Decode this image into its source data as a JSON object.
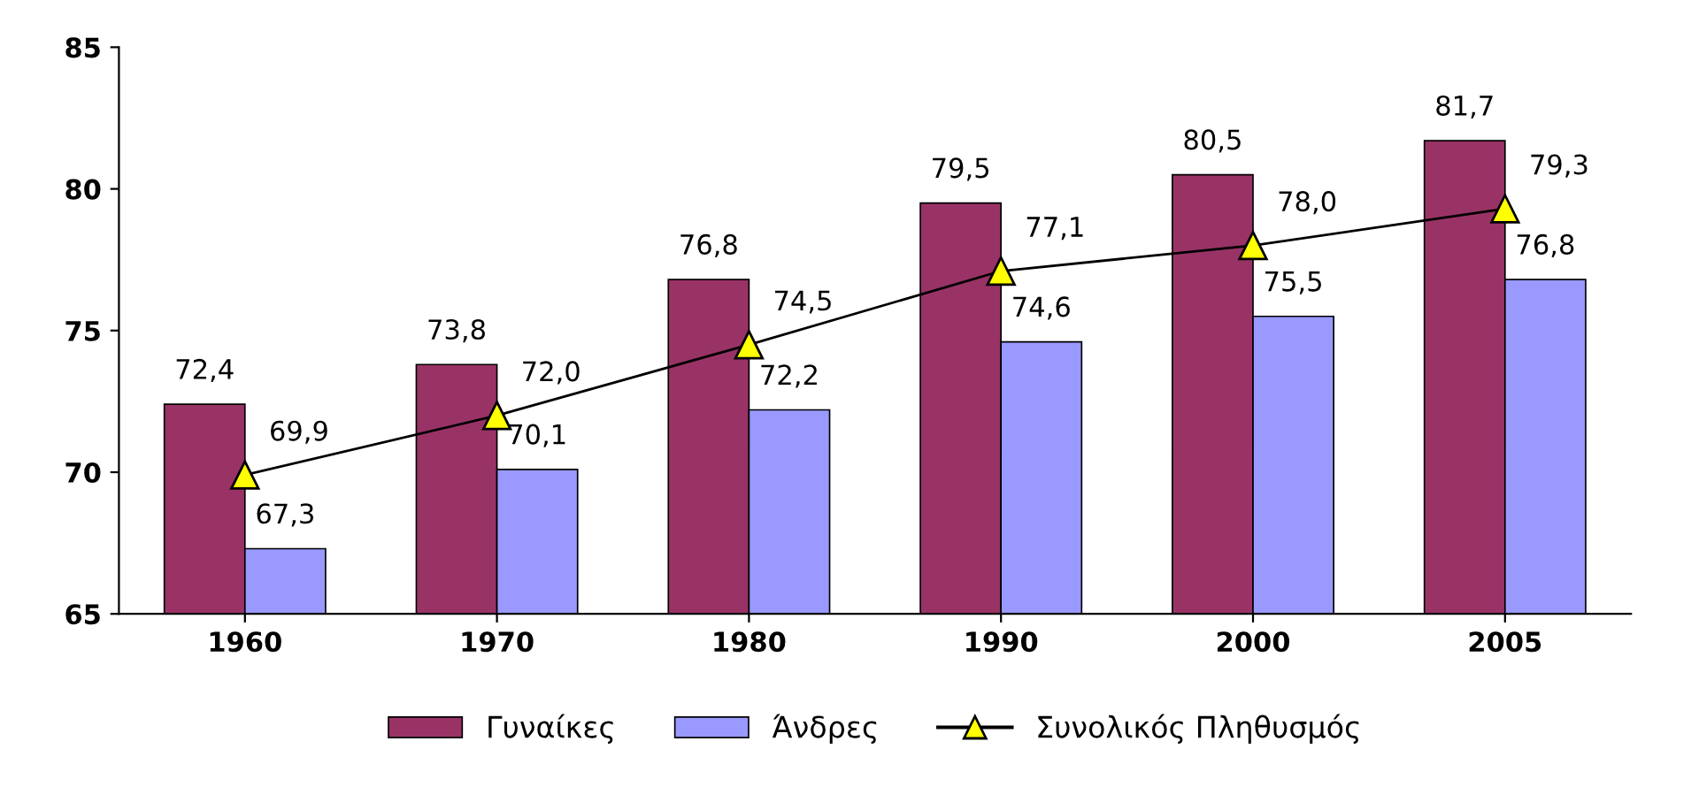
{
  "chart_data": {
    "type": "bar",
    "categories": [
      "1960",
      "1970",
      "1980",
      "1990",
      "2000",
      "2005"
    ],
    "series": [
      {
        "name": "Γυναίκες",
        "color": "#993366",
        "values": [
          72.4,
          73.8,
          76.8,
          79.5,
          80.5,
          81.7
        ],
        "value_labels": [
          "72,4",
          "73,8",
          "76,8",
          "79,5",
          "80,5",
          "81,7"
        ]
      },
      {
        "name": "Άνδρες",
        "color": "#9999ff",
        "values": [
          67.3,
          70.1,
          72.2,
          74.6,
          75.5,
          76.8
        ],
        "value_labels": [
          "67,3",
          "70,1",
          "72,2",
          "74,6",
          "75,5",
          "76,8"
        ]
      },
      {
        "name": "Συνολικός Πληθυσμός",
        "type": "line",
        "color": "#000000",
        "marker": "triangle",
        "values": [
          69.9,
          72.0,
          74.5,
          77.1,
          78.0,
          79.3
        ],
        "value_labels": [
          "69,9",
          "72,0",
          "74,5",
          "77,1",
          "78,0",
          "79,3"
        ]
      }
    ],
    "ylim": [
      65,
      85
    ],
    "yticks": [
      65,
      70,
      75,
      80,
      85
    ],
    "grid": false,
    "legend": "bottom"
  }
}
